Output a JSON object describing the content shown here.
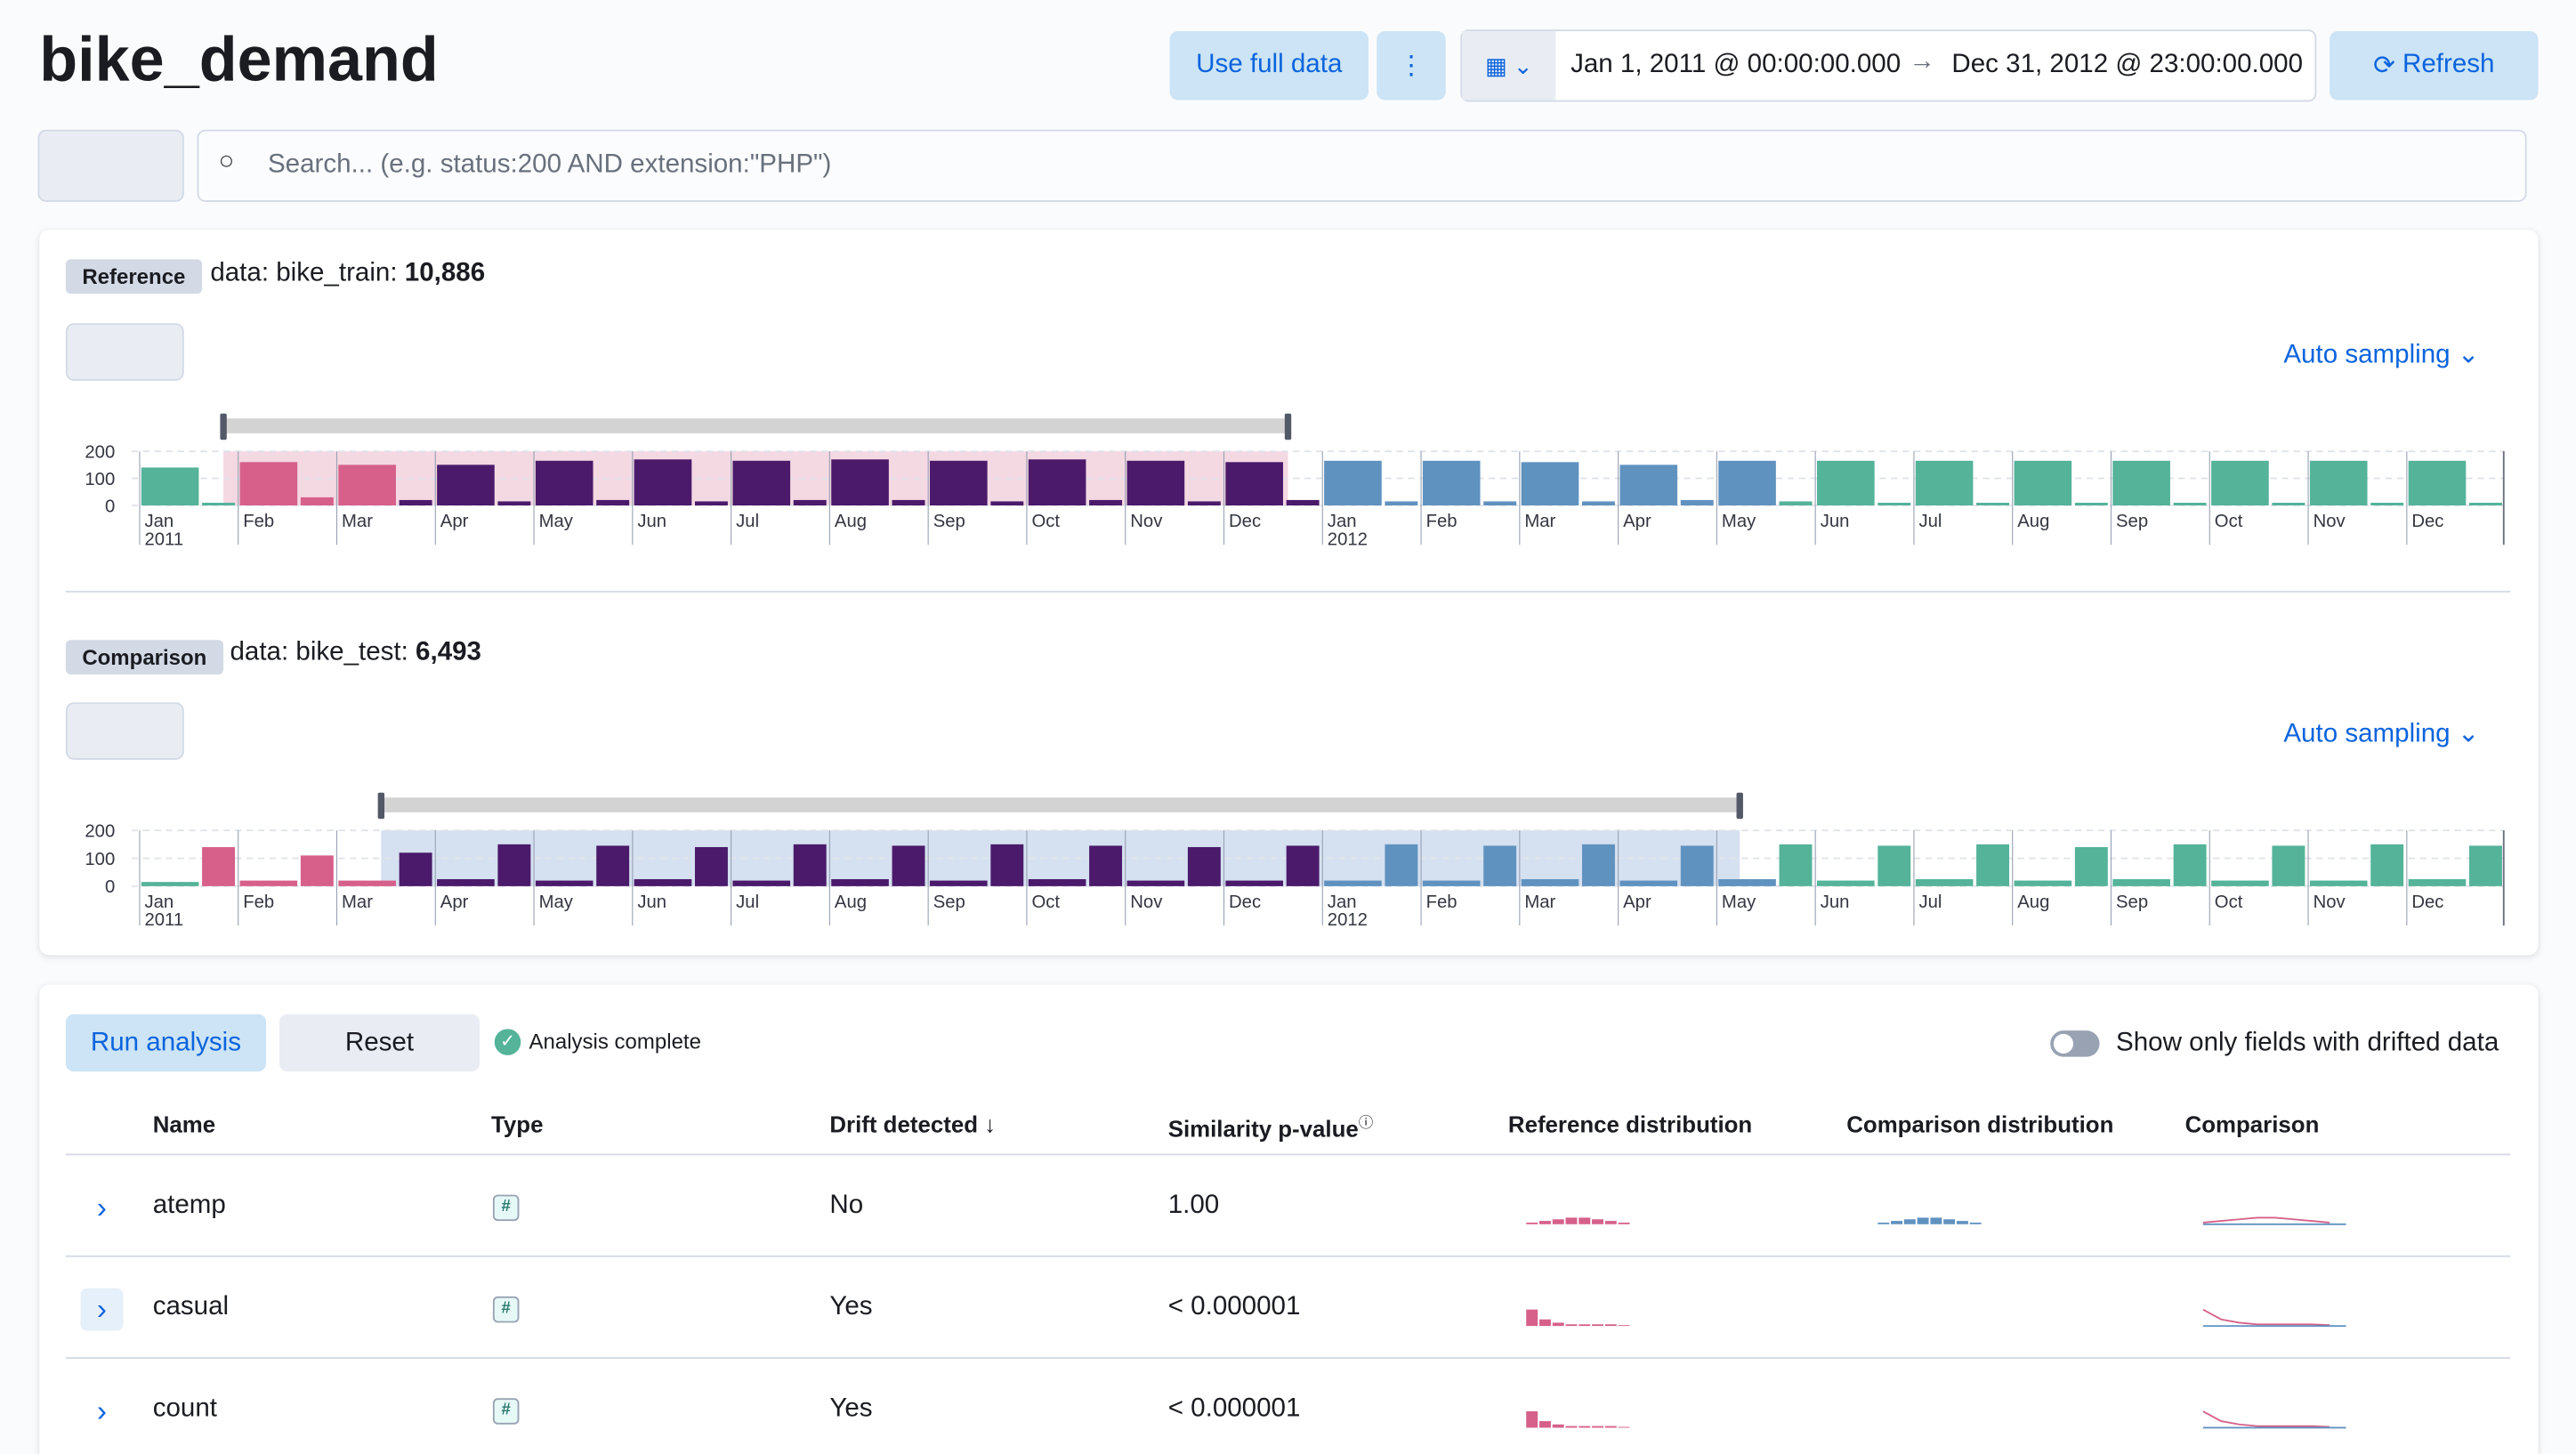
{
  "header": {
    "title": "bike_demand",
    "use_full_data": "Use full data",
    "date_start": "Jan 1, 2011 @ 00:00:00.000",
    "date_end": "Dec 31, 2012 @ 23:00:00.000",
    "refresh": "Refresh"
  },
  "search": {
    "placeholder": "Search... (e.g. status:200 AND extension:\"PHP\")"
  },
  "reference": {
    "badge": "Reference",
    "label": "data: bike_train:",
    "count": "10,886",
    "sampling": "Auto sampling"
  },
  "comparison": {
    "badge": "Comparison",
    "label": "data: bike_test:",
    "count": "6,493",
    "sampling": "Auto sampling"
  },
  "chart_data": [
    {
      "type": "bar",
      "month_labels": [
        "Jan",
        "Feb",
        "Mar",
        "Apr",
        "May",
        "Jun",
        "Jul",
        "Aug",
        "Sep",
        "Oct",
        "Nov",
        "Dec",
        "Jan",
        "Feb",
        "Mar",
        "Apr",
        "May",
        "Jun",
        "Jul",
        "Aug",
        "Sep",
        "Oct",
        "Nov",
        "Dec"
      ],
      "years": [
        "2011",
        "2012"
      ],
      "values": [
        140,
        10,
        160,
        30,
        150,
        20,
        150,
        15,
        165,
        20,
        170,
        15,
        165,
        20,
        170,
        20,
        165,
        15,
        170,
        20,
        165,
        15,
        160,
        20,
        165,
        15,
        165,
        15,
        160,
        15,
        150,
        20,
        165,
        15,
        165,
        10,
        165,
        10,
        165,
        10,
        165,
        10,
        165,
        10,
        165,
        10,
        165,
        10
      ],
      "colors": [
        "#54b399",
        "#54b399",
        "#d6608a",
        "#d6608a",
        "#d6608a",
        "#4b1a6b",
        "#4b1a6b",
        "#4b1a6b",
        "#4b1a6b",
        "#4b1a6b",
        "#4b1a6b",
        "#4b1a6b",
        "#4b1a6b",
        "#4b1a6b",
        "#4b1a6b",
        "#4b1a6b",
        "#4b1a6b",
        "#4b1a6b",
        "#4b1a6b",
        "#4b1a6b",
        "#4b1a6b",
        "#4b1a6b",
        "#4b1a6b",
        "#4b1a6b",
        "#6092c0",
        "#6092c0",
        "#6092c0",
        "#6092c0",
        "#6092c0",
        "#6092c0",
        "#6092c0",
        "#6092c0",
        "#6092c0",
        "#54b399",
        "#54b399",
        "#54b399",
        "#54b399",
        "#54b399",
        "#54b399",
        "#54b399",
        "#54b399",
        "#54b399",
        "#54b399",
        "#54b399",
        "#54b399",
        "#54b399",
        "#54b399",
        "#54b399"
      ],
      "ylim": [
        0,
        200
      ],
      "yticks": [
        0,
        100,
        200
      ],
      "grid": true
    },
    {
      "type": "bar",
      "month_labels": [
        "Jan",
        "Feb",
        "Mar",
        "Apr",
        "May",
        "Jun",
        "Jul",
        "Aug",
        "Sep",
        "Oct",
        "Nov",
        "Dec",
        "Jan",
        "Feb",
        "Mar",
        "Apr",
        "May",
        "Jun",
        "Jul",
        "Aug",
        "Sep",
        "Oct",
        "Nov",
        "Dec"
      ],
      "years": [
        "2011",
        "2012"
      ],
      "values": [
        15,
        140,
        20,
        110,
        20,
        120,
        25,
        150,
        20,
        145,
        25,
        140,
        20,
        150,
        25,
        145,
        20,
        150,
        25,
        145,
        20,
        140,
        20,
        145,
        20,
        150,
        20,
        145,
        25,
        150,
        20,
        145,
        25,
        150,
        20,
        145,
        25,
        150,
        20,
        140,
        25,
        150,
        20,
        145,
        20,
        150,
        25,
        145
      ],
      "colors": [
        "#54b399",
        "#d6608a",
        "#d6608a",
        "#d6608a",
        "#d6608a",
        "#4b1a6b",
        "#4b1a6b",
        "#4b1a6b",
        "#4b1a6b",
        "#4b1a6b",
        "#4b1a6b",
        "#4b1a6b",
        "#4b1a6b",
        "#4b1a6b",
        "#4b1a6b",
        "#4b1a6b",
        "#4b1a6b",
        "#4b1a6b",
        "#4b1a6b",
        "#4b1a6b",
        "#4b1a6b",
        "#4b1a6b",
        "#4b1a6b",
        "#4b1a6b",
        "#6092c0",
        "#6092c0",
        "#6092c0",
        "#6092c0",
        "#6092c0",
        "#6092c0",
        "#6092c0",
        "#6092c0",
        "#6092c0",
        "#54b399",
        "#54b399",
        "#54b399",
        "#54b399",
        "#54b399",
        "#54b399",
        "#54b399",
        "#54b399",
        "#54b399",
        "#54b399",
        "#54b399",
        "#54b399",
        "#54b399",
        "#54b399",
        "#54b399"
      ],
      "ylim": [
        0,
        200
      ],
      "yticks": [
        0,
        100,
        200
      ],
      "grid": true
    }
  ],
  "analysis": {
    "run": "Run analysis",
    "reset": "Reset",
    "status": "Analysis complete",
    "toggle": "Show only fields with drifted data",
    "columns": [
      "Name",
      "Type",
      "Drift detected",
      "Similarity p-value",
      "Reference distribution",
      "Comparison distribution",
      "Comparison"
    ],
    "rows": [
      {
        "name": "atemp",
        "type": "#",
        "drift": "No",
        "p_value": "1.00"
      },
      {
        "name": "casual",
        "type": "#",
        "drift": "Yes",
        "p_value": "< 0.000001"
      },
      {
        "name": "count",
        "type": "#",
        "drift": "Yes",
        "p_value": "< 0.000001"
      }
    ]
  }
}
